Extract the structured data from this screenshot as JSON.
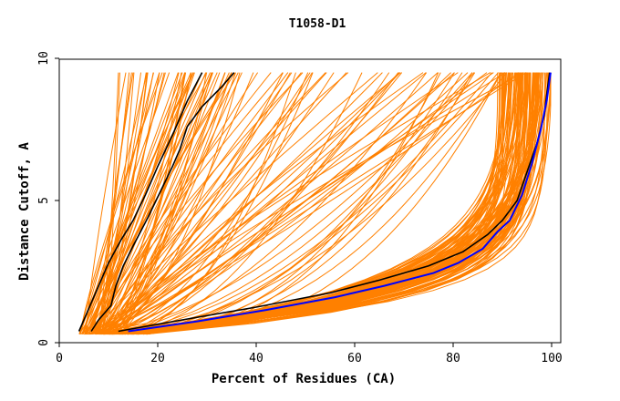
{
  "chart_data": {
    "type": "line",
    "title": "T1058-D1",
    "xlabel": "Percent of Residues (CA)",
    "ylabel": "Distance Cutoff, A",
    "xlim": [
      0,
      100
    ],
    "ylim": [
      0,
      10
    ],
    "xticks": [
      0,
      20,
      40,
      60,
      80,
      100
    ],
    "yticks": [
      0,
      5,
      10
    ],
    "grid": false,
    "legend": "none",
    "colors": {
      "models": "#ff8000",
      "highlight_black": "#000000",
      "highlight_blue": "#0000ff",
      "axes": "#000000"
    },
    "series": [
      {
        "color": "#000000",
        "x": [
          4,
          5.5,
          7.5,
          10,
          12.5,
          15,
          17.5,
          20,
          23,
          26,
          29
        ],
        "y": [
          0.4,
          1.0,
          1.8,
          2.8,
          3.6,
          4.3,
          5.2,
          6.2,
          7.3,
          8.5,
          9.5
        ]
      },
      {
        "color": "#000000",
        "x": [
          6.5,
          8,
          10.5,
          11.5,
          13,
          15,
          18,
          20.5,
          23,
          24.5,
          26,
          29,
          33,
          35.5
        ],
        "y": [
          0.4,
          0.8,
          1.3,
          2.0,
          2.7,
          3.4,
          4.4,
          5.3,
          6.2,
          6.8,
          7.6,
          8.3,
          9.0,
          9.5
        ]
      },
      {
        "color": "#000000",
        "x": [
          12,
          25,
          40,
          55,
          65,
          75,
          82,
          87,
          90,
          93,
          95,
          97,
          98.5,
          99.2,
          99.6
        ],
        "y": [
          0.4,
          0.8,
          1.25,
          1.75,
          2.2,
          2.7,
          3.2,
          3.8,
          4.3,
          5.0,
          6.0,
          7.0,
          8.0,
          9.0,
          9.5
        ]
      },
      {
        "color": "#0000ff",
        "x": [
          14,
          28,
          42,
          56,
          66,
          76,
          81,
          86,
          89,
          91.5,
          94,
          96,
          97.8,
          99,
          99.8
        ],
        "y": [
          0.4,
          0.75,
          1.15,
          1.6,
          2.0,
          2.45,
          2.8,
          3.3,
          3.9,
          4.3,
          5.2,
          6.3,
          7.5,
          8.5,
          9.5
        ]
      }
    ]
  }
}
